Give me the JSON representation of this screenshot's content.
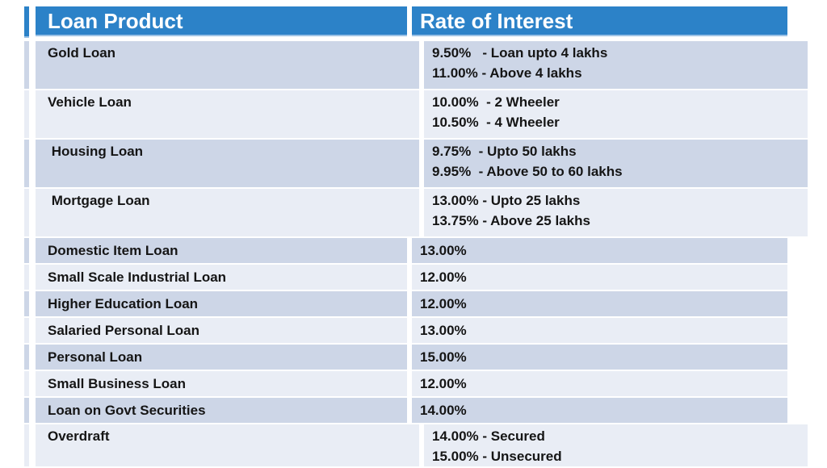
{
  "title": "Loan Product Rate of Interest table",
  "header": {
    "col1": "Loan Product",
    "col2": "Rate of Interest"
  },
  "rows": [
    {
      "product": "Gold Loan",
      "rate": "9.50%   - Loan upto 4 lakhs\n11.00% - Above 4 lakhs"
    },
    {
      "product": "Vehicle Loan",
      "rate": "10.00%  - 2 Wheeler\n10.50%  - 4 Wheeler"
    },
    {
      "product": " Housing Loan",
      "rate": "9.75%  - Upto 50 lakhs\n9.95%  - Above 50 to 60 lakhs"
    },
    {
      "product": " Mortgage Loan",
      "rate": "13.00% - Upto 25 lakhs\n13.75% - Above 25 lakhs"
    },
    {
      "product": "Domestic Item Loan",
      "rate": "13.00%"
    },
    {
      "product": "Small Scale Industrial Loan",
      "rate": "12.00%"
    },
    {
      "product": "Higher Education Loan",
      "rate": "12.00%"
    },
    {
      "product": "Salaried Personal Loan",
      "rate": "13.00%"
    },
    {
      "product": "Personal Loan",
      "rate": "15.00%"
    },
    {
      "product": "Small Business Loan",
      "rate": "12.00%"
    },
    {
      "product": "Loan on Govt Securities",
      "rate": "14.00%"
    },
    {
      "product": "Overdraft",
      "rate": "14.00% - Secured\n15.00% - Unsecured"
    }
  ],
  "colors": {
    "header_bg": "#2C82C8",
    "header_text": "#FFFFFF",
    "row_dark": "#CDD6E7",
    "row_light": "#E9EDF5",
    "accent_line": "#9DC3E6",
    "text": "#151515",
    "background": "#FFFFFF"
  }
}
